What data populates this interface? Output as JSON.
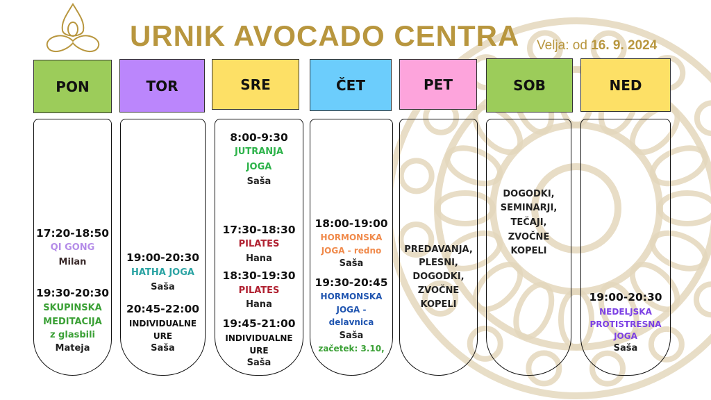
{
  "header": {
    "title": "URNIK AVOCADO CENTRA",
    "valid_prefix": "Velja: od",
    "valid_date": "16. 9. 2024"
  },
  "colors": {
    "gold": "#b8963e",
    "green_header": "#9ccc5a",
    "purple_header": "#bb86fc",
    "yellow_header": "#fde066",
    "blue_header": "#6ccdfc",
    "pink_header": "#fda4dc"
  },
  "days": [
    {
      "label": "PON",
      "color": "#9ccc5a",
      "lines": [
        {
          "text": "17:20-18:50",
          "type": "t"
        },
        {
          "text": "QI GONG",
          "type": "n",
          "color": "#b48ce8"
        },
        {
          "text": "Milan",
          "type": "n",
          "color": "#3a2a2a"
        },
        {
          "text": "19:30-20:30",
          "type": "t"
        },
        {
          "text": "SKUPINSKA",
          "type": "n",
          "color": "#3aa035"
        },
        {
          "text": "MEDITACIJA",
          "type": "n",
          "color": "#3aa035"
        },
        {
          "text": "z glasbili",
          "type": "n",
          "color": "#3aa035"
        },
        {
          "text": "Mateja",
          "type": "n"
        }
      ]
    },
    {
      "label": "TOR",
      "color": "#bb86fc",
      "lines": [
        {
          "text": "19:00-20:30",
          "type": "t"
        },
        {
          "text": "HATHA JOGA",
          "type": "n",
          "color": "#2aa3a3"
        },
        {
          "text": "Saša",
          "type": "n"
        },
        {
          "text": "20:45-22:00",
          "type": "t"
        },
        {
          "text": "INDIVIDUALNE",
          "type": "s"
        },
        {
          "text": "URE",
          "type": "s"
        },
        {
          "text": "Saša",
          "type": "n"
        }
      ]
    },
    {
      "label": "SRE",
      "color": "#fde066",
      "lines": [
        {
          "text": "8:00-9:30",
          "type": "t"
        },
        {
          "text": "JUTRANJA",
          "type": "n",
          "color": "#2db34a"
        },
        {
          "text": "JOGA",
          "type": "n",
          "color": "#2db34a"
        },
        {
          "text": "Saša",
          "type": "n"
        },
        {
          "text": "17:30-18:30",
          "type": "t"
        },
        {
          "text": "PILATES",
          "type": "n",
          "color": "#b02030"
        },
        {
          "text": "Hana",
          "type": "n"
        },
        {
          "text": "18:30-19:30",
          "type": "t"
        },
        {
          "text": "PILATES",
          "type": "n",
          "color": "#b02030"
        },
        {
          "text": "Hana",
          "type": "n"
        },
        {
          "text": "19:45-21:00",
          "type": "t"
        },
        {
          "text": "INDIVIDUALNE",
          "type": "s"
        },
        {
          "text": "URE",
          "type": "s"
        },
        {
          "text": "Saša",
          "type": "n"
        }
      ]
    },
    {
      "label": "ČET",
      "color": "#6ccdfc",
      "lines": [
        {
          "text": "18:00-19:00",
          "type": "t"
        },
        {
          "text": "HORMONSKA",
          "type": "s",
          "color": "#f08a4b"
        },
        {
          "text": "JOGA - redno",
          "type": "s",
          "color": "#f08a4b"
        },
        {
          "text": "Saša",
          "type": "n"
        },
        {
          "text": "19:30-20:45",
          "type": "t"
        },
        {
          "text": "HORMONSKA",
          "type": "s",
          "color": "#2055b0"
        },
        {
          "text": "JOGA -",
          "type": "s",
          "color": "#2055b0"
        },
        {
          "text": "delavnica",
          "type": "s",
          "color": "#2055b0"
        },
        {
          "text": "Saša",
          "type": "n"
        },
        {
          "text": "začetek: 3.10,",
          "type": "s",
          "color": "#3aa035"
        }
      ]
    },
    {
      "label": "PET",
      "color": "#fda4dc",
      "lines": [
        {
          "text": "PREDAVANJA,",
          "type": "n"
        },
        {
          "text": "PLESNI,",
          "type": "n"
        },
        {
          "text": "DOGODKI,",
          "type": "n"
        },
        {
          "text": "ZVOČNE",
          "type": "n"
        },
        {
          "text": "KOPELI",
          "type": "n"
        }
      ]
    },
    {
      "label": "SOB",
      "color": "#9ccc5a",
      "lines": [
        {
          "text": "DOGODKI,",
          "type": "n"
        },
        {
          "text": "SEMINARJI,",
          "type": "n"
        },
        {
          "text": "TEČAJI,",
          "type": "n"
        },
        {
          "text": "ZVOČNE",
          "type": "n"
        },
        {
          "text": "KOPELI",
          "type": "n"
        }
      ]
    },
    {
      "label": "NED",
      "color": "#fde066",
      "lines": [
        {
          "text": "19:00-20:30",
          "type": "t"
        },
        {
          "text": "NEDELJSKA",
          "type": "s",
          "color": "#7b3fe4"
        },
        {
          "text": "PROTISTRESNA",
          "type": "s",
          "color": "#7b3fe4"
        },
        {
          "text": "JOGA",
          "type": "s",
          "color": "#7b3fe4"
        },
        {
          "text": "Saša",
          "type": "n"
        }
      ]
    }
  ]
}
